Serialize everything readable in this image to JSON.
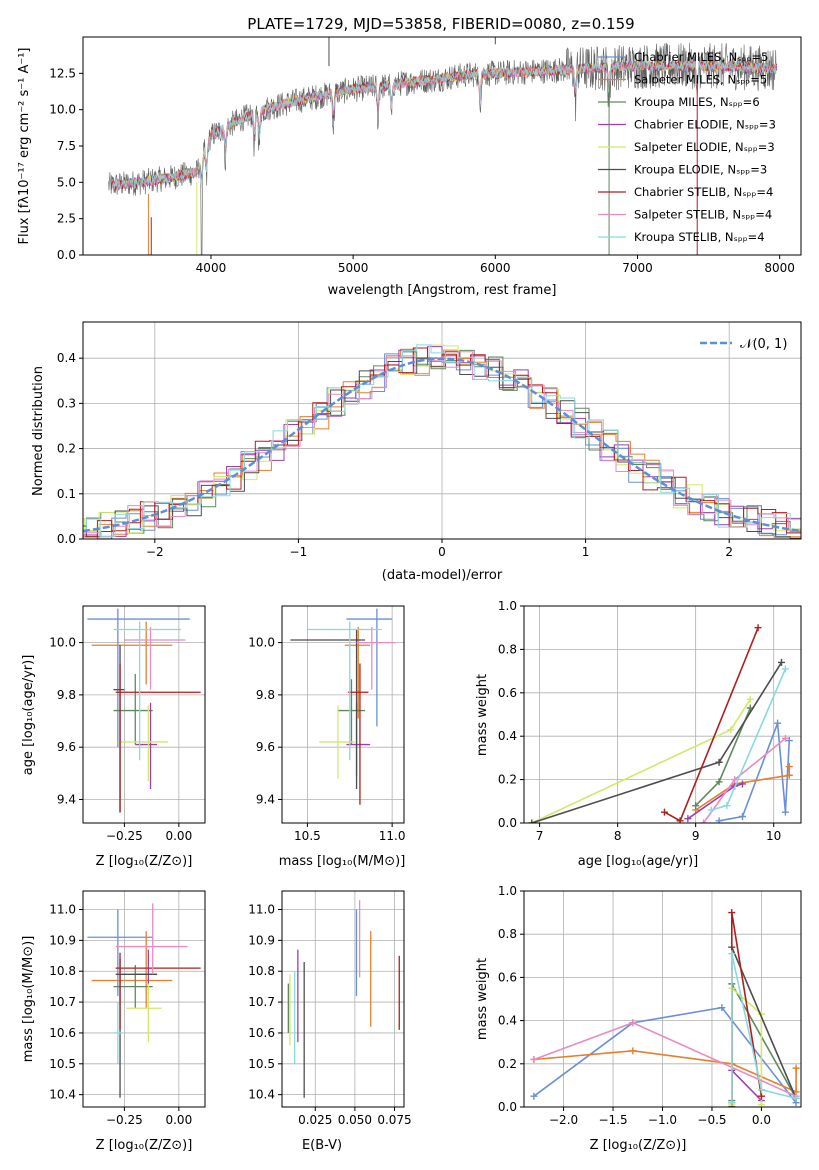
{
  "colors": [
    "#6a8fd9",
    "#e87e2c",
    "#5d8a5d",
    "#9b3fb3",
    "#d2e86a",
    "#4d4d4d",
    "#b01e1e",
    "#e88bc4",
    "#88d9dd"
  ],
  "chart_data": [
    {
      "id": "spectrum",
      "type": "line",
      "title": "PLATE=1729, MJD=53858, FIBERID=0080, z=0.159",
      "xlabel": "wavelength [Angstrom, rest frame]",
      "ylabel": "Flux [fλ10⁻¹⁷ erg cm⁻² s⁻¹ A⁻¹]",
      "xlim": [
        3100,
        8150
      ],
      "ylim": [
        0,
        15
      ],
      "xticks": [
        "4000",
        "5000",
        "6000",
        "7000",
        "8000"
      ],
      "yticks": [
        "0.0",
        "2.5",
        "5.0",
        "7.5",
        "10.0",
        "12.5"
      ],
      "legend_placement": "upper-right",
      "series": [
        {
          "name": "Chabrier MILES, Nₛₚₚ=5"
        },
        {
          "name": "Salpeter MILES, Nₛₚₚ=5"
        },
        {
          "name": "Kroupa MILES, Nₛₚₚ=6"
        },
        {
          "name": "Chabrier ELODIE, Nₛₚₚ=3"
        },
        {
          "name": "Salpeter ELODIE, Nₛₚₚ=3"
        },
        {
          "name": "Kroupa ELODIE, Nₛₚₚ=3"
        },
        {
          "name": "Chabrier STELIB, Nₛₚₚ=4"
        },
        {
          "name": "Salpeter STELIB, Nₛₚₚ=4"
        },
        {
          "name": "Kroupa STELIB, Nₛₚₚ=4"
        }
      ],
      "continuum": {
        "x": [
          3300,
          3500,
          3700,
          3900,
          4000,
          4200,
          4400,
          4600,
          4800,
          5000,
          5200,
          5400,
          5600,
          5800,
          6000,
          6200,
          6400,
          6600,
          6800,
          7000,
          7200,
          7400,
          7600,
          7800,
          8000
        ],
        "y": [
          4.8,
          5.0,
          5.3,
          5.7,
          8.2,
          9.3,
          10.1,
          10.6,
          11.0,
          11.4,
          11.6,
          11.9,
          12.1,
          12.4,
          12.5,
          12.6,
          12.7,
          12.8,
          12.9,
          13.0,
          13.0,
          13.0,
          13.0,
          12.9,
          12.8
        ]
      },
      "absorption_lines": [
        3934,
        3969,
        4102,
        4305,
        4340,
        4861,
        5175,
        5270,
        5892,
        6563,
        6800,
        7420
      ]
    },
    {
      "id": "residual-hist",
      "type": "histogram",
      "xlabel": "(data-model)/error",
      "ylabel": "Normed distribution",
      "xlim": [
        -2.5,
        2.5
      ],
      "ylim": [
        0,
        0.48
      ],
      "xticks": [
        "−2",
        "−1",
        "0",
        "1",
        "2"
      ],
      "yticks": [
        "0.0",
        "0.1",
        "0.2",
        "0.3",
        "0.4"
      ],
      "bin_width": 0.1,
      "legend": "𝒩(0, 1)",
      "legend_placement": "upper-right",
      "normal_curve": {
        "mean": 0,
        "sigma": 1
      }
    },
    {
      "id": "z-vs-age",
      "type": "errorbar",
      "xlabel": "Z [log₁₀(Z/Z⊙)]",
      "ylabel": "age  [log₁₀(age/yr)]",
      "xlim": [
        -0.44,
        0.12
      ],
      "ylim": [
        9.31,
        10.14
      ],
      "xticks": [
        "−0.25",
        "0.00"
      ],
      "xtick_values": [
        -0.25,
        0.0
      ],
      "yticks": [
        "9.4",
        "9.6",
        "9.8",
        "10.0"
      ],
      "ytick_values": [
        9.4,
        9.6,
        9.8,
        10.0
      ],
      "points": [
        {
          "x": -0.28,
          "y": 10.09,
          "x_lo": -0.42,
          "x_hi": 0.05,
          "y_lo": 9.6,
          "y_hi": 10.13
        },
        {
          "x": -0.15,
          "y": 9.99,
          "x_lo": -0.4,
          "x_hi": -0.03,
          "y_lo": 9.84,
          "y_hi": 10.08
        },
        {
          "x": -0.2,
          "y": 9.74,
          "x_lo": -0.3,
          "x_hi": -0.12,
          "y_lo": 9.61,
          "y_hi": 9.88
        },
        {
          "x": -0.13,
          "y": 9.61,
          "x_lo": -0.2,
          "x_hi": -0.1,
          "y_lo": 9.44,
          "y_hi": 9.77
        },
        {
          "x": -0.14,
          "y": 9.62,
          "x_lo": -0.28,
          "x_hi": -0.05,
          "y_lo": 9.47,
          "y_hi": 9.76
        },
        {
          "x": -0.27,
          "y": 9.82,
          "x_lo": -0.3,
          "x_hi": -0.25,
          "y_lo": 9.35,
          "y_hi": 9.99
        },
        {
          "x": -0.27,
          "y": 9.81,
          "x_lo": -0.29,
          "x_hi": 0.1,
          "y_lo": 9.35,
          "y_hi": 9.92
        },
        {
          "x": -0.13,
          "y": 10.01,
          "x_lo": -0.25,
          "x_hi": 0.03,
          "y_lo": 9.82,
          "y_hi": 10.06
        },
        {
          "x": -0.18,
          "y": 10.05,
          "x_lo": -0.3,
          "x_hi": 0.01,
          "y_lo": 9.55,
          "y_hi": 10.08
        }
      ]
    },
    {
      "id": "mass-vs-age",
      "type": "errorbar",
      "xlabel": "mass [log₁₀(M/M⊙)]",
      "ylabel": "",
      "xlim": [
        10.35,
        11.07
      ],
      "ylim": [
        9.31,
        10.14
      ],
      "xticks": [
        "10.5",
        "11.0"
      ],
      "xtick_values": [
        10.5,
        11.0
      ],
      "yticks": [
        "9.4",
        "9.6",
        "9.8",
        "10.0"
      ],
      "ytick_values": [
        9.4,
        9.6,
        9.8,
        10.0
      ],
      "points": [
        {
          "x": 10.91,
          "y": 10.09,
          "x_lo": 10.73,
          "x_hi": 11.0,
          "y_lo": 9.68,
          "y_hi": 10.13
        },
        {
          "x": 10.8,
          "y": 9.99,
          "x_lo": 10.72,
          "x_hi": 10.87,
          "y_lo": 9.71,
          "y_hi": 10.06
        },
        {
          "x": 10.76,
          "y": 9.74,
          "x_lo": 10.68,
          "x_hi": 10.84,
          "y_lo": 9.61,
          "y_hi": 9.86
        },
        {
          "x": 10.79,
          "y": 9.61,
          "x_lo": 10.73,
          "x_hi": 10.87,
          "y_lo": 9.49,
          "y_hi": 9.77
        },
        {
          "x": 10.68,
          "y": 9.62,
          "x_lo": 10.57,
          "x_hi": 10.78,
          "y_lo": 9.48,
          "y_hi": 9.76
        },
        {
          "x": 10.79,
          "y": 10.01,
          "x_lo": 10.4,
          "x_hi": 10.84,
          "y_lo": 9.44,
          "y_hi": 10.05
        },
        {
          "x": 10.81,
          "y": 9.81,
          "x_lo": 10.74,
          "x_hi": 10.86,
          "y_lo": 9.38,
          "y_hi": 9.92
        },
        {
          "x": 10.88,
          "y": 10.0,
          "x_lo": 10.79,
          "x_hi": 11.02,
          "y_lo": 9.82,
          "y_hi": 10.06
        },
        {
          "x": 10.75,
          "y": 10.05,
          "x_lo": 10.5,
          "x_hi": 10.94,
          "y_lo": 9.55,
          "y_hi": 10.08
        }
      ]
    },
    {
      "id": "age-mass-weight",
      "type": "line",
      "xlabel": "age  [log₁₀(age/yr)]",
      "ylabel": "mass weight",
      "xlim": [
        6.8,
        10.35
      ],
      "ylim": [
        0,
        1.0
      ],
      "xticks": [
        "7",
        "8",
        "9",
        "10"
      ],
      "xtick_values": [
        7,
        8,
        9,
        10
      ],
      "yticks": [
        "0.0",
        "0.2",
        "0.4",
        "0.6",
        "0.8",
        "1.0"
      ],
      "ytick_values": [
        0,
        0.2,
        0.4,
        0.6,
        0.8,
        1.0
      ],
      "series": [
        {
          "x": [
            9.3,
            9.6,
            10.05,
            10.15,
            10.2
          ],
          "y": [
            0.01,
            0.03,
            0.46,
            0.05,
            0.38
          ]
        },
        {
          "x": [
            9.0,
            9.5,
            10.2,
            10.2
          ],
          "y": [
            0.06,
            0.18,
            0.22,
            0.26
          ]
        },
        {
          "x": [
            9.0,
            9.3,
            9.7
          ],
          "y": [
            0.08,
            0.19,
            0.53
          ]
        },
        {
          "x": [
            8.9,
            9.5,
            9.6
          ],
          "y": [
            0.02,
            0.17,
            0.18
          ]
        },
        {
          "x": [
            6.9,
            9.45,
            9.7
          ],
          "y": [
            0.0,
            0.43,
            0.57
          ]
        },
        {
          "x": [
            6.9,
            9.3,
            10.1
          ],
          "y": [
            0.0,
            0.28,
            0.74
          ]
        },
        {
          "x": [
            8.6,
            8.8,
            9.8
          ],
          "y": [
            0.05,
            0.01,
            0.9
          ]
        },
        {
          "x": [
            9.1,
            9.5,
            10.15
          ],
          "y": [
            0.0,
            0.2,
            0.39
          ]
        },
        {
          "x": [
            9.2,
            9.4,
            10.15
          ],
          "y": [
            0.06,
            0.08,
            0.71
          ]
        }
      ]
    },
    {
      "id": "z-vs-mass",
      "type": "errorbar",
      "xlabel": "Z [log₁₀(Z/Z⊙)]",
      "ylabel": "mass [log₁₀(M/M⊙)]",
      "xlim": [
        -0.44,
        0.12
      ],
      "ylim": [
        10.36,
        11.06
      ],
      "xticks": [
        "−0.25",
        "0.00"
      ],
      "xtick_values": [
        -0.25,
        0.0
      ],
      "yticks": [
        "10.4",
        "10.5",
        "10.6",
        "10.7",
        "10.8",
        "10.9",
        "11.0"
      ],
      "ytick_values": [
        10.4,
        10.5,
        10.6,
        10.7,
        10.8,
        10.9,
        11.0
      ],
      "points": [
        {
          "x": -0.28,
          "y": 10.91,
          "x_lo": -0.42,
          "x_hi": -0.12,
          "y_lo": 10.72,
          "y_hi": 11.0
        },
        {
          "x": -0.15,
          "y": 10.77,
          "x_lo": -0.4,
          "x_hi": -0.03,
          "y_lo": 10.68,
          "y_hi": 10.93
        },
        {
          "x": -0.2,
          "y": 10.75,
          "x_lo": -0.3,
          "x_hi": -0.12,
          "y_lo": 10.68,
          "y_hi": 10.82
        },
        {
          "x": -0.14,
          "y": 10.79,
          "x_lo": -0.2,
          "x_hi": -0.1,
          "y_lo": 10.73,
          "y_hi": 10.87
        },
        {
          "x": -0.14,
          "y": 10.68,
          "x_lo": -0.24,
          "x_hi": -0.08,
          "y_lo": 10.57,
          "y_hi": 10.76
        },
        {
          "x": -0.27,
          "y": 10.79,
          "x_lo": -0.29,
          "x_hi": -0.1,
          "y_lo": 10.39,
          "y_hi": 10.84
        },
        {
          "x": -0.27,
          "y": 10.81,
          "x_lo": -0.29,
          "x_hi": 0.1,
          "y_lo": 10.61,
          "y_hi": 10.86
        },
        {
          "x": -0.12,
          "y": 10.88,
          "x_lo": -0.29,
          "x_hi": 0.04,
          "y_lo": 10.79,
          "y_hi": 11.02
        },
        {
          "x": -0.28,
          "y": 10.6,
          "x_lo": -0.3,
          "x_hi": -0.26,
          "y_lo": 10.5,
          "y_hi": 10.7
        }
      ]
    },
    {
      "id": "ebv-vs-mass",
      "type": "errorbar",
      "xlabel": "E(B-V)",
      "ylabel": "",
      "xlim": [
        0.004,
        0.081
      ],
      "ylim": [
        10.36,
        11.06
      ],
      "xticks": [
        "0.025",
        "0.050",
        "0.075"
      ],
      "xtick_values": [
        0.025,
        0.05,
        0.075
      ],
      "yticks": [
        "10.4",
        "10.5",
        "10.6",
        "10.7",
        "10.8",
        "10.9",
        "11.0"
      ],
      "ytick_values": [
        10.4,
        10.5,
        10.6,
        10.7,
        10.8,
        10.9,
        11.0
      ],
      "points": [
        {
          "x": 0.051,
          "y": 10.88,
          "x_lo": 0.051,
          "x_hi": 0.051,
          "y_lo": 10.72,
          "y_hi": 11.0
        },
        {
          "x": 0.06,
          "y": 10.78,
          "x_lo": 0.06,
          "x_hi": 0.06,
          "y_lo": 10.62,
          "y_hi": 10.93
        },
        {
          "x": 0.008,
          "y": 10.7,
          "x_lo": 0.008,
          "x_hi": 0.008,
          "y_lo": 10.6,
          "y_hi": 10.76
        },
        {
          "x": 0.014,
          "y": 10.72,
          "x_lo": 0.014,
          "x_hi": 0.014,
          "y_lo": 10.57,
          "y_hi": 10.87
        },
        {
          "x": 0.009,
          "y": 10.68,
          "x_lo": 0.009,
          "x_hi": 0.009,
          "y_lo": 10.56,
          "y_hi": 10.79
        },
        {
          "x": 0.018,
          "y": 10.6,
          "x_lo": 0.018,
          "x_hi": 0.018,
          "y_lo": 10.39,
          "y_hi": 10.83
        },
        {
          "x": 0.078,
          "y": 10.73,
          "x_lo": 0.078,
          "x_hi": 0.078,
          "y_lo": 10.61,
          "y_hi": 10.85
        },
        {
          "x": 0.053,
          "y": 10.9,
          "x_lo": 0.053,
          "x_hi": 0.053,
          "y_lo": 10.78,
          "y_hi": 11.03
        },
        {
          "x": 0.012,
          "y": 10.65,
          "x_lo": 0.012,
          "x_hi": 0.012,
          "y_lo": 10.5,
          "y_hi": 10.8
        }
      ]
    },
    {
      "id": "z-mass-weight",
      "type": "line",
      "xlabel": "Z [log₁₀(Z/Z⊙)]",
      "ylabel": "mass weight",
      "xlim": [
        -2.4,
        0.4
      ],
      "ylim": [
        0,
        1.0
      ],
      "xticks": [
        "−2.0",
        "−1.5",
        "−1.0",
        "−0.5",
        "0.0"
      ],
      "xtick_values": [
        -2.0,
        -1.5,
        -1.0,
        -0.5,
        0.0
      ],
      "yticks": [
        "0.0",
        "0.2",
        "0.4",
        "0.6",
        "0.8",
        "1.0"
      ],
      "ytick_values": [
        0,
        0.2,
        0.4,
        0.6,
        0.8,
        1.0
      ],
      "series": [
        {
          "x": [
            -2.3,
            -1.3,
            -0.4,
            0.35
          ],
          "y": [
            0.05,
            0.39,
            0.46,
            0.02
          ]
        },
        {
          "x": [
            -2.3,
            -1.3,
            -0.3,
            0.35,
            0.35
          ],
          "y": [
            0.22,
            0.26,
            0.2,
            0.07,
            0.18
          ]
        },
        {
          "x": [
            -0.3,
            -0.3,
            0.35
          ],
          "y": [
            0.03,
            0.57,
            0.04
          ]
        },
        {
          "x": [
            -0.3,
            -0.3,
            0.0
          ],
          "y": [
            0.02,
            0.17,
            0.03
          ]
        },
        {
          "x": [
            -0.3,
            -0.3,
            0.0,
            0.0
          ],
          "y": [
            0.01,
            0.55,
            0.43,
            0.01
          ]
        },
        {
          "x": [
            -0.3,
            -0.3,
            0.35
          ],
          "y": [
            0.0,
            0.74,
            0.04
          ]
        },
        {
          "x": [
            -0.3,
            -0.3,
            0.0
          ],
          "y": [
            0.0,
            0.9,
            0.05
          ]
        },
        {
          "x": [
            -2.3,
            -1.3,
            0.35
          ],
          "y": [
            0.22,
            0.39,
            0.05
          ]
        },
        {
          "x": [
            -0.3,
            -0.3,
            0.0,
            0.35
          ],
          "y": [
            0.02,
            0.71,
            0.08,
            0.04
          ]
        }
      ]
    }
  ]
}
